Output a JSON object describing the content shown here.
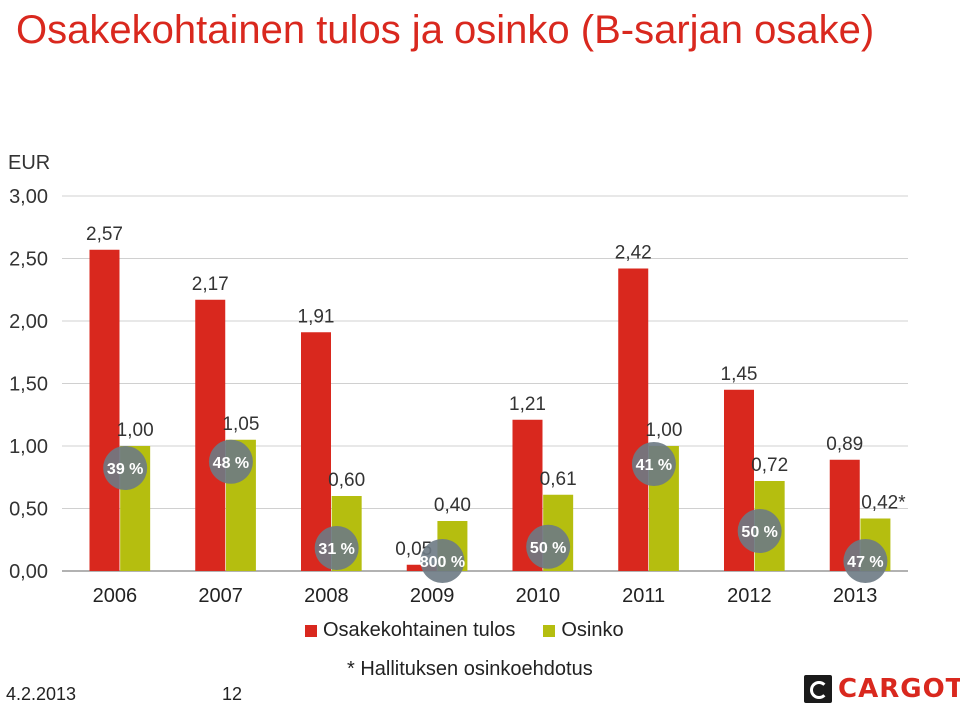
{
  "title": "Osakekohtainen tulos ja osinko (B-sarjan osake)",
  "footnote": "* Hallituksen osinkoehdotus",
  "date": "4.2.2013",
  "page_number": "12",
  "logo_text": "CARGOTEC",
  "colors": {
    "eps": "#d9281e",
    "dividend": "#b5be0f",
    "badge": "#6d7a84",
    "title": "#d9281e"
  },
  "chart_data": {
    "type": "bar",
    "unit_label": "EUR",
    "categories": [
      "2006",
      "2007",
      "2008",
      "2009",
      "2010",
      "2011",
      "2012",
      "2013"
    ],
    "ylim": [
      0,
      3
    ],
    "yticks": [
      "0,00",
      "0,50",
      "1,00",
      "1,50",
      "2,00",
      "2,50",
      "3,00"
    ],
    "ytick_values": [
      0,
      0.5,
      1,
      1.5,
      2,
      2.5,
      3
    ],
    "grid": true,
    "legend_position": "bottom",
    "series": [
      {
        "name": "Osakekohtainen tulos",
        "color": "#d9281e",
        "values": [
          2.57,
          2.17,
          1.91,
          0.05,
          1.21,
          2.42,
          1.45,
          0.89
        ],
        "labels": [
          "2,57",
          "2,17",
          "1,91",
          "0,05",
          "1,21",
          "2,42",
          "1,45",
          "0,89"
        ]
      },
      {
        "name": "Osinko",
        "color": "#b5be0f",
        "values": [
          1.0,
          1.05,
          0.6,
          0.4,
          0.61,
          1.0,
          0.72,
          0.42
        ],
        "labels": [
          "1,00",
          "1,05",
          "0,60",
          "0,40",
          "0,61",
          "1,00",
          "0,72",
          "0,42*"
        ]
      }
    ],
    "payout_ratios": [
      "39 %",
      "48 %",
      "31 %",
      "800 %",
      "50 %",
      "41 %",
      "50 %",
      "47 %"
    ]
  }
}
